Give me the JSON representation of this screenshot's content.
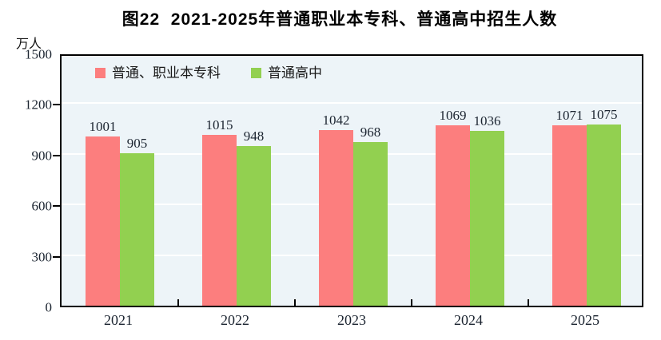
{
  "title": "图22  2021-2025年普通职业本专科、普通高中招生人数",
  "y_unit": "万人",
  "legend": [
    {
      "label": "普通、职业本专科",
      "color": "#FC7E7E"
    },
    {
      "label": "普通高中",
      "color": "#92D050"
    }
  ],
  "colors": {
    "plot_background": "#EDF4F8",
    "gridline": "#FFFFFF",
    "frame": "#000000",
    "series1": "#FC7E7E",
    "series2": "#92D050"
  },
  "chart_data": {
    "type": "bar",
    "title": "图22  2021-2025年普通职业本专科、普通高中招生人数",
    "categories": [
      "2021",
      "2022",
      "2023",
      "2024",
      "2025"
    ],
    "series": [
      {
        "name": "普通、职业本专科",
        "color": "#FC7E7E",
        "values": [
          1001,
          1015,
          1042,
          1069,
          1071
        ]
      },
      {
        "name": "普通高中",
        "color": "#92D050",
        "values": [
          905,
          948,
          968,
          1036,
          1075
        ]
      }
    ],
    "xlabel": "",
    "ylabel": "万人",
    "ylim": [
      0,
      1500
    ],
    "yticks": [
      0,
      300,
      600,
      900,
      1200,
      1500
    ],
    "grid": true,
    "legend_position": "top-left-inside",
    "value_labels": true
  }
}
